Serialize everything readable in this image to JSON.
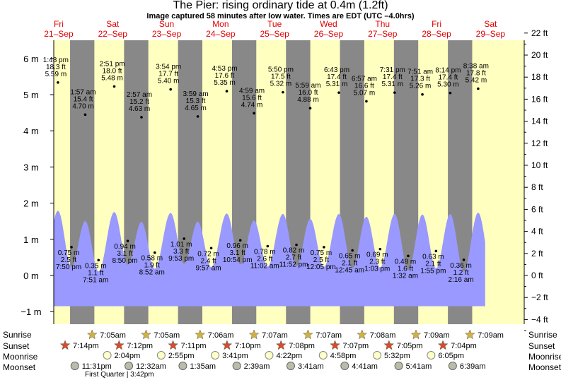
{
  "title": "The Pier: rising  ordinary tide at 0.4m (1.2ft)",
  "subtitle": "Image captured 58 minutes after low water. Times are EDT (UTC –4.0hrs)",
  "days": [
    {
      "dow": "Fri",
      "date": "21–Sep"
    },
    {
      "dow": "Sat",
      "date": "22–Sep"
    },
    {
      "dow": "Sun",
      "date": "23–Sep"
    },
    {
      "dow": "Mon",
      "date": "24–Sep"
    },
    {
      "dow": "Tue",
      "date": "25–Sep"
    },
    {
      "dow": "Wed",
      "date": "26–Sep"
    },
    {
      "dow": "Thu",
      "date": "27–Sep"
    },
    {
      "dow": "Fri",
      "date": "28–Sep"
    },
    {
      "dow": "Sat",
      "date": "29–Sep"
    }
  ],
  "row_labels": {
    "sunrise": "Sunrise",
    "sunset": "Sunset",
    "moonrise": "Moonrise",
    "moonset": "Moonset"
  },
  "moon_phase": "First Quarter | 3:42pm",
  "chart_data": {
    "type": "area",
    "title": "The Pier: rising  ordinary tide at 0.4m (1.2ft)",
    "x_unit": "days since 21-Sep 00:00",
    "y_left_unit": "m",
    "y_right_unit": "ft",
    "ylim_m": [
      -1.3,
      6.5
    ],
    "yticks_m": [
      "6 m",
      "5 m",
      "4 m",
      "3 m",
      "2 m",
      "1 m",
      "0 m",
      "−1 m"
    ],
    "yticks_ft": [
      "22 ft",
      "20 ft",
      "18 ft",
      "16 ft",
      "14 ft",
      "12 ft",
      "10 ft",
      "8 ft",
      "6 ft",
      "4 ft",
      "2 ft",
      "0 ft",
      "−2 ft",
      "−4 ft"
    ],
    "night_bands_x": [
      [
        0.8,
        1.25
      ],
      [
        1.8,
        2.25
      ],
      [
        2.8,
        3.25
      ],
      [
        3.8,
        4.25
      ],
      [
        4.8,
        5.25
      ],
      [
        5.8,
        6.25
      ],
      [
        6.8,
        7.25
      ],
      [
        7.8,
        8.25
      ]
    ],
    "tide_extremes": [
      {
        "time": "1:48 pm",
        "m": "5.59 m",
        "ft": "18.3 ft",
        "type": "high",
        "x": 0.575,
        "v": 5.59
      },
      {
        "time": "7:50 pm",
        "m": "0.75 m",
        "ft": "2.5 ft",
        "type": "low",
        "x": 0.826,
        "v": 0.75
      },
      {
        "time": "1:57 am",
        "m": "4.70 m",
        "ft": "15.4 ft",
        "type": "high",
        "x": 1.081,
        "v": 4.7
      },
      {
        "time": "7:51 am",
        "m": "0.35 m",
        "ft": "1.1 ft",
        "type": "low",
        "x": 1.327,
        "v": 0.35
      },
      {
        "time": "2:51 pm",
        "m": "5.48 m",
        "ft": "18.0 ft",
        "type": "high",
        "x": 1.619,
        "v": 5.48
      },
      {
        "time": "8:50 pm",
        "m": "0.94 m",
        "ft": "3.1 ft",
        "type": "low",
        "x": 1.868,
        "v": 0.94
      },
      {
        "time": "2:57 am",
        "m": "4.63 m",
        "ft": "15.2 ft",
        "type": "high",
        "x": 2.123,
        "v": 4.63
      },
      {
        "time": "8:52 am",
        "m": "0.58 m",
        "ft": "1.9 ft",
        "type": "low",
        "x": 2.369,
        "v": 0.58
      },
      {
        "time": "3:54 pm",
        "m": "5.40 m",
        "ft": "17.7 ft",
        "type": "high",
        "x": 2.663,
        "v": 5.4
      },
      {
        "time": "9:53 pm",
        "m": "1.01 m",
        "ft": "3.3 ft",
        "type": "low",
        "x": 2.912,
        "v": 1.01
      },
      {
        "time": "3:59 am",
        "m": "4.65 m",
        "ft": "15.3 ft",
        "type": "high",
        "x": 3.166,
        "v": 4.65
      },
      {
        "time": "9:57 am",
        "m": "0.72 m",
        "ft": "2.4 ft",
        "type": "low",
        "x": 3.415,
        "v": 0.72
      },
      {
        "time": "4:53 pm",
        "m": "5.35 m",
        "ft": "17.6 ft",
        "type": "high",
        "x": 3.703,
        "v": 5.35
      },
      {
        "time": "10:54 pm",
        "m": "0.96 m",
        "ft": "3.1 ft",
        "type": "low",
        "x": 3.954,
        "v": 0.96
      },
      {
        "time": "4:59 am",
        "m": "4.74 m",
        "ft": "15.6 ft",
        "type": "high",
        "x": 4.208,
        "v": 4.74
      },
      {
        "time": "11:02 am",
        "m": "0.78 m",
        "ft": "2.6 ft",
        "type": "low",
        "x": 4.46,
        "v": 0.78
      },
      {
        "time": "5:50 pm",
        "m": "5.32 m",
        "ft": "17.5 ft",
        "type": "high",
        "x": 4.743,
        "v": 5.32
      },
      {
        "time": "11:52 pm",
        "m": "0.82 m",
        "ft": "2.7 ft",
        "type": "low",
        "x": 4.994,
        "v": 0.82
      },
      {
        "time": "5:59 am",
        "m": "4.88 m",
        "ft": "16.0 ft",
        "type": "high",
        "x": 5.249,
        "v": 4.88
      },
      {
        "time": "12:05 pm",
        "m": "0.75 m",
        "ft": "2.5 ft",
        "type": "low",
        "x": 5.503,
        "v": 0.75
      },
      {
        "time": "6:43 pm",
        "m": "5.31 m",
        "ft": "17.4 ft",
        "type": "high",
        "x": 5.78,
        "v": 5.31
      },
      {
        "time": "12:45 am",
        "m": "0.65 m",
        "ft": "2.1 ft",
        "type": "low",
        "x": 6.031,
        "v": 0.65
      },
      {
        "time": "6:57 am",
        "m": "5.07 m",
        "ft": "16.6 ft",
        "type": "high",
        "x": 6.29,
        "v": 5.07
      },
      {
        "time": "1:03 pm",
        "m": "0.69 m",
        "ft": "2.3 ft",
        "type": "low",
        "x": 6.544,
        "v": 0.69
      },
      {
        "time": "7:31 pm",
        "m": "5.31 m",
        "ft": "17.4 ft",
        "type": "high",
        "x": 6.813,
        "v": 5.31
      },
      {
        "time": "1:32 am",
        "m": "0.48 m",
        "ft": "1.6 ft",
        "type": "low",
        "x": 7.064,
        "v": 0.48
      },
      {
        "time": "7:51 am",
        "m": "5.26 m",
        "ft": "17.3 ft",
        "type": "high",
        "x": 7.327,
        "v": 5.26
      },
      {
        "time": "1:55 pm",
        "m": "0.63 m",
        "ft": "2.1 ft",
        "type": "low",
        "x": 7.58,
        "v": 0.63
      },
      {
        "time": "8:14 pm",
        "m": "5.30 m",
        "ft": "17.4 ft",
        "type": "high",
        "x": 7.843,
        "v": 5.3
      },
      {
        "time": "2:16 am",
        "m": "0.36 m",
        "ft": "1.2 ft",
        "type": "low",
        "x": 8.094,
        "v": 0.36
      },
      {
        "time": "8:38 am",
        "m": "5.42 m",
        "ft": "17.8 ft",
        "type": "high",
        "x": 8.36,
        "v": 5.42
      }
    ],
    "sunrise": [
      "7:05am",
      "7:05am",
      "7:06am",
      "7:07am",
      "7:07am",
      "7:08am",
      "7:09am",
      "7:09am"
    ],
    "sunset": [
      "7:14pm",
      "7:12pm",
      "7:11pm",
      "7:10pm",
      "7:08pm",
      "7:07pm",
      "7:05pm",
      "7:04pm"
    ],
    "moonrise": [
      "2:04pm",
      "2:55pm",
      "3:41pm",
      "4:22pm",
      "4:58pm",
      "5:32pm",
      "6:05pm"
    ],
    "moonset": [
      "11:31pm",
      "12:32am",
      "1:35am",
      "2:39am",
      "3:41am",
      "4:41am",
      "5:41am",
      "6:39am"
    ]
  },
  "colors": {
    "day": "#ffffc0",
    "night": "#888888",
    "water": "#9999ff",
    "sunset_star": "#d94c2a",
    "sunrise_star": "#d4b23a"
  }
}
